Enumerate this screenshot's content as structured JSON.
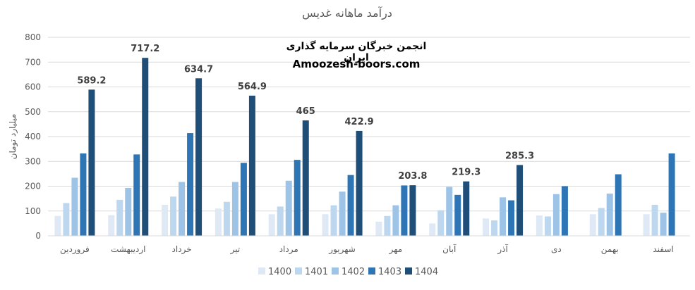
{
  "chart_data": {
    "type": "bar",
    "title": "درآمد ماهانه غدیس",
    "ylabel": "میلیارد تومان",
    "xlabel": "",
    "ylim": [
      0,
      800
    ],
    "yticks": [
      0,
      100,
      200,
      300,
      400,
      500,
      600,
      700,
      800
    ],
    "grid": true,
    "legend_position": "bottom",
    "categories": [
      "فروردین",
      "اردیبهشت",
      "خرداد",
      "تیر",
      "مرداد",
      "شهریور",
      "مهر",
      "آبان",
      "آذر",
      "دی",
      "بهمن",
      "اسفند"
    ],
    "series": [
      {
        "name": "1400",
        "color": "#dfe9f5",
        "values": [
          80,
          83,
          125,
          110,
          87,
          87,
          57,
          50,
          70,
          82,
          87,
          87
        ]
      },
      {
        "name": "1401",
        "color": "#bdd7ee",
        "values": [
          132,
          145,
          158,
          137,
          118,
          123,
          80,
          103,
          62,
          78,
          112,
          125
        ]
      },
      {
        "name": "1402",
        "color": "#9dc3e6",
        "values": [
          234,
          193,
          217,
          217,
          222,
          178,
          123,
          197,
          155,
          168,
          170,
          93
        ]
      },
      {
        "name": "1403",
        "color": "#2e75b6",
        "values": [
          332,
          328,
          414,
          294,
          306,
          245,
          203,
          165,
          143,
          200,
          248,
          332
        ]
      },
      {
        "name": "1404",
        "color": "#1f4e79",
        "values": [
          589.2,
          717.2,
          634.7,
          564.9,
          465,
          422.9,
          203.8,
          219.3,
          285.3,
          null,
          null,
          null
        ]
      }
    ],
    "data_labels": {
      "series": "1404",
      "labels": [
        "589.2",
        "717.2",
        "634.7",
        "564.9",
        "465",
        "422.9",
        "203.8",
        "219.3",
        "285.3",
        null,
        null,
        null
      ]
    }
  },
  "watermark": {
    "line1": "انجمن خبرگان سرمایه گذاری ایران",
    "line2": "Amoozesh-boors.com"
  },
  "colors": {
    "grid": "#d9d9d9",
    "axis_text": "#595959",
    "data_label": "#404040"
  }
}
